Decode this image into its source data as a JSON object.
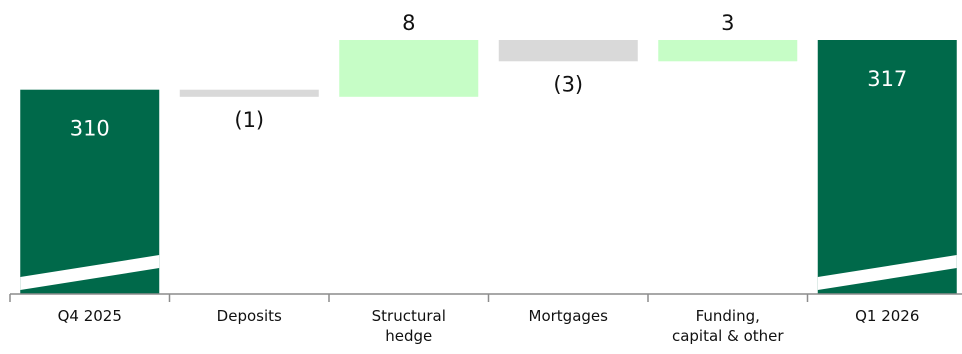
{
  "chart_data": {
    "type": "bar",
    "subtype": "waterfall",
    "title": "",
    "xlabel": "",
    "ylabel": "",
    "categories": [
      {
        "lines": [
          "Q4 2025"
        ]
      },
      {
        "lines": [
          "Deposits"
        ]
      },
      {
        "lines": [
          "Structural",
          "hedge"
        ]
      },
      {
        "lines": [
          "Mortgages"
        ]
      },
      {
        "lines": [
          "Funding,",
          "capital & other"
        ]
      },
      {
        "lines": [
          "Q1 2026"
        ]
      }
    ],
    "values": [
      310,
      -1,
      8,
      -3,
      3,
      317
    ],
    "labels": [
      "310",
      "(1)",
      "8",
      "(3)",
      "3",
      "317"
    ],
    "kinds": [
      "total",
      "delta",
      "delta",
      "delta",
      "delta",
      "total"
    ],
    "axis_break": true,
    "grid": false,
    "legend": "none",
    "colors": {
      "total": "#00694a",
      "increase": "#c6fdc6",
      "decrease": "#d9d9d9",
      "axis": "#8c8c8c",
      "total_label": "#ffffff",
      "delta_label": "#111111"
    }
  }
}
